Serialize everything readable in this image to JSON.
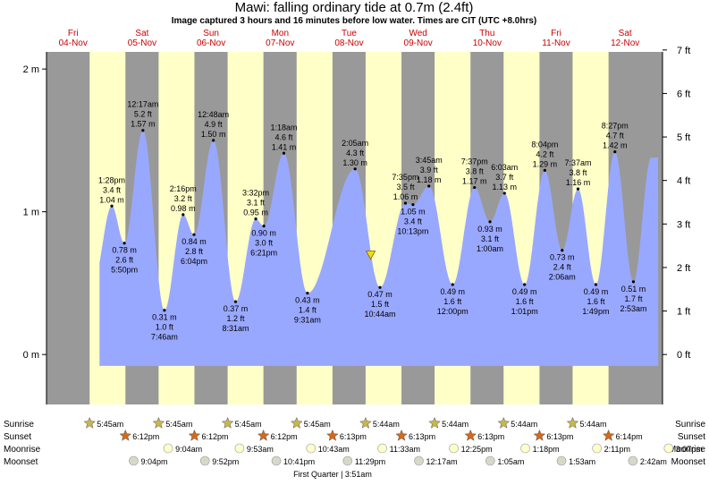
{
  "header": {
    "title": "Mawi: falling  ordinary tide at 0.7m (2.4ft)",
    "subtitle": "Image captured 3 hours and 16 minutes before low water. Times are CIT (UTC +8.0hrs)"
  },
  "colors": {
    "day": "#ffffc8",
    "night": "#999999",
    "tide": "#99a8ff",
    "day_label": "#cc0000",
    "sunrise_star": "#c8b84a",
    "sunset_star": "#d2691e",
    "moon": "#ffffcc"
  },
  "chart_data": {
    "type": "area",
    "title": "Mawi: falling  ordinary tide at 0.7m (2.4ft)",
    "left_axis": {
      "unit": "m",
      "range": [
        -0.35,
        2.12
      ],
      "ticks": [
        "0 m",
        "1 m",
        "2 m"
      ]
    },
    "right_axis": {
      "unit": "ft",
      "ticks": [
        "0 ft",
        "1 ft",
        "2 ft",
        "3 ft",
        "4 ft",
        "5 ft",
        "6 ft",
        "7 ft"
      ]
    },
    "x_range_hours": [
      -9.25,
      205.0
    ],
    "days": [
      {
        "wd": "Fri",
        "date": "04-Nov"
      },
      {
        "wd": "Sat",
        "date": "05-Nov"
      },
      {
        "wd": "Sun",
        "date": "06-Nov"
      },
      {
        "wd": "Mon",
        "date": "07-Nov"
      },
      {
        "wd": "Tue",
        "date": "08-Nov"
      },
      {
        "wd": "Wed",
        "date": "09-Nov"
      },
      {
        "wd": "Thu",
        "date": "10-Nov"
      },
      {
        "wd": "Fri",
        "date": "11-Nov"
      },
      {
        "wd": "Sat",
        "date": "12-Nov"
      }
    ],
    "daylight": [
      {
        "rise": "5:45am",
        "set": "6:12pm"
      },
      {
        "rise": "5:45am",
        "set": "6:12pm"
      },
      {
        "rise": "5:45am",
        "set": "6:12pm"
      },
      {
        "rise": "5:45am",
        "set": "6:13pm"
      },
      {
        "rise": "5:44am",
        "set": "6:13pm"
      },
      {
        "rise": "5:44am",
        "set": "6:13pm"
      },
      {
        "rise": "5:44am",
        "set": "6:13pm"
      },
      {
        "rise": "5:44am",
        "set": "6:14pm"
      }
    ],
    "tides": [
      {
        "time": "1:28 pm",
        "m": 1.04,
        "ft": "3.4 ft",
        "type": "high",
        "day": 0
      },
      {
        "time": "5:50 pm",
        "m": 0.78,
        "ft": "2.6 ft",
        "type": "low",
        "day": 0
      },
      {
        "time": "12:17 am",
        "m": 1.57,
        "ft": "5.2 ft",
        "type": "high",
        "day": 1
      },
      {
        "time": "7:46 am",
        "m": 0.31,
        "ft": "1.0 ft",
        "type": "low",
        "day": 1
      },
      {
        "time": "2:16 pm",
        "m": 0.98,
        "ft": "3.2 ft",
        "type": "high",
        "day": 1
      },
      {
        "time": "6:04 pm",
        "m": 0.84,
        "ft": "2.8 ft",
        "type": "low",
        "day": 1
      },
      {
        "time": "12:48 am",
        "m": 1.5,
        "ft": "4.9 ft",
        "type": "high",
        "day": 2
      },
      {
        "time": "8:31 am",
        "m": 0.37,
        "ft": "1.2 ft",
        "type": "low",
        "day": 2
      },
      {
        "time": "3:32 pm",
        "m": 0.95,
        "ft": "3.1 ft",
        "type": "high",
        "day": 2
      },
      {
        "time": "6:21 pm",
        "m": 0.9,
        "ft": "3.0 ft",
        "type": "low",
        "day": 2
      },
      {
        "time": "1:18 am",
        "m": 1.41,
        "ft": "4.6 ft",
        "type": "high",
        "day": 3
      },
      {
        "time": "9:31 am",
        "m": 0.43,
        "ft": "1.4 ft",
        "type": "low",
        "day": 3
      },
      {
        "time": "2:05 am",
        "m": 1.3,
        "ft": "4.3 ft",
        "type": "high",
        "day": 4
      },
      {
        "time": "10:44 am",
        "m": 0.47,
        "ft": "1.5 ft",
        "type": "low",
        "day": 4
      },
      {
        "time": "7:35 pm",
        "m": 1.06,
        "ft": "3.5 ft",
        "type": "high",
        "day": 4
      },
      {
        "time": "10:13 pm",
        "m": 1.05,
        "ft": "3.4 ft",
        "type": "low",
        "day": 4
      },
      {
        "time": "3:45 am",
        "m": 1.18,
        "ft": "3.9 ft",
        "type": "high",
        "day": 5
      },
      {
        "time": "12:00 pm",
        "m": 0.49,
        "ft": "1.6 ft",
        "type": "low",
        "day": 5
      },
      {
        "time": "7:37 pm",
        "m": 1.17,
        "ft": "3.8 ft",
        "type": "high",
        "day": 5
      },
      {
        "time": "1:00 am",
        "m": 0.93,
        "ft": "3.1 ft",
        "type": "low",
        "day": 6
      },
      {
        "time": "6:03 am",
        "m": 1.13,
        "ft": "3.7 ft",
        "type": "high",
        "day": 6
      },
      {
        "time": "1:01 pm",
        "m": 0.49,
        "ft": "1.6 ft",
        "type": "low",
        "day": 6
      },
      {
        "time": "8:04 pm",
        "m": 1.29,
        "ft": "4.2 ft",
        "type": "high",
        "day": 6
      },
      {
        "time": "2:06 am",
        "m": 0.73,
        "ft": "2.4 ft",
        "type": "low",
        "day": 7
      },
      {
        "time": "7:37 am",
        "m": 1.16,
        "ft": "3.8 ft",
        "type": "high",
        "day": 7
      },
      {
        "time": "1:49 pm",
        "m": 0.49,
        "ft": "1.6 ft",
        "type": "low",
        "day": 7
      },
      {
        "time": "8:27 pm",
        "m": 1.42,
        "ft": "4.7 ft",
        "type": "high",
        "day": 7
      },
      {
        "time": "2:53 am",
        "m": 0.51,
        "ft": "1.7 ft",
        "type": "low",
        "day": 8
      }
    ],
    "current": {
      "day": 4,
      "time": "7:30 am",
      "m": 0.7
    }
  },
  "almanac": {
    "row_labels": {
      "sunrise": "Sunrise",
      "sunset": "Sunset",
      "moonrise": "Moonrise",
      "moonset": "Moonset"
    },
    "sunrise": [
      "5:45am",
      "5:45am",
      "5:45am",
      "5:45am",
      "5:44am",
      "5:44am",
      "5:44am",
      "5:44am"
    ],
    "sunset": [
      "6:12pm",
      "6:12pm",
      "6:12pm",
      "6:13pm",
      "6:13pm",
      "6:13pm",
      "6:13pm",
      "6:14pm"
    ],
    "moonrise": [
      {
        "day": 1,
        "time": "9:04am"
      },
      {
        "day": 2,
        "time": "9:53am"
      },
      {
        "day": 3,
        "time": "10:43am"
      },
      {
        "day": 4,
        "time": "11:33am"
      },
      {
        "day": 5,
        "time": "12:25pm"
      },
      {
        "day": 6,
        "time": "1:18pm"
      },
      {
        "day": 7,
        "time": "2:11pm"
      },
      {
        "day": 8,
        "time": "3:07pm"
      }
    ],
    "moonset": [
      {
        "day": 0,
        "time": "9:04pm"
      },
      {
        "day": 1,
        "time": "9:52pm"
      },
      {
        "day": 2,
        "time": "10:41pm"
      },
      {
        "day": 3,
        "time": "11:29pm"
      },
      {
        "day": 5,
        "time": "12:17am"
      },
      {
        "day": 6,
        "time": "1:05am"
      },
      {
        "day": 7,
        "time": "1:53am"
      },
      {
        "day": 8,
        "time": "2:42am"
      }
    ],
    "moon_phase": "First Quarter | 3:51am"
  }
}
